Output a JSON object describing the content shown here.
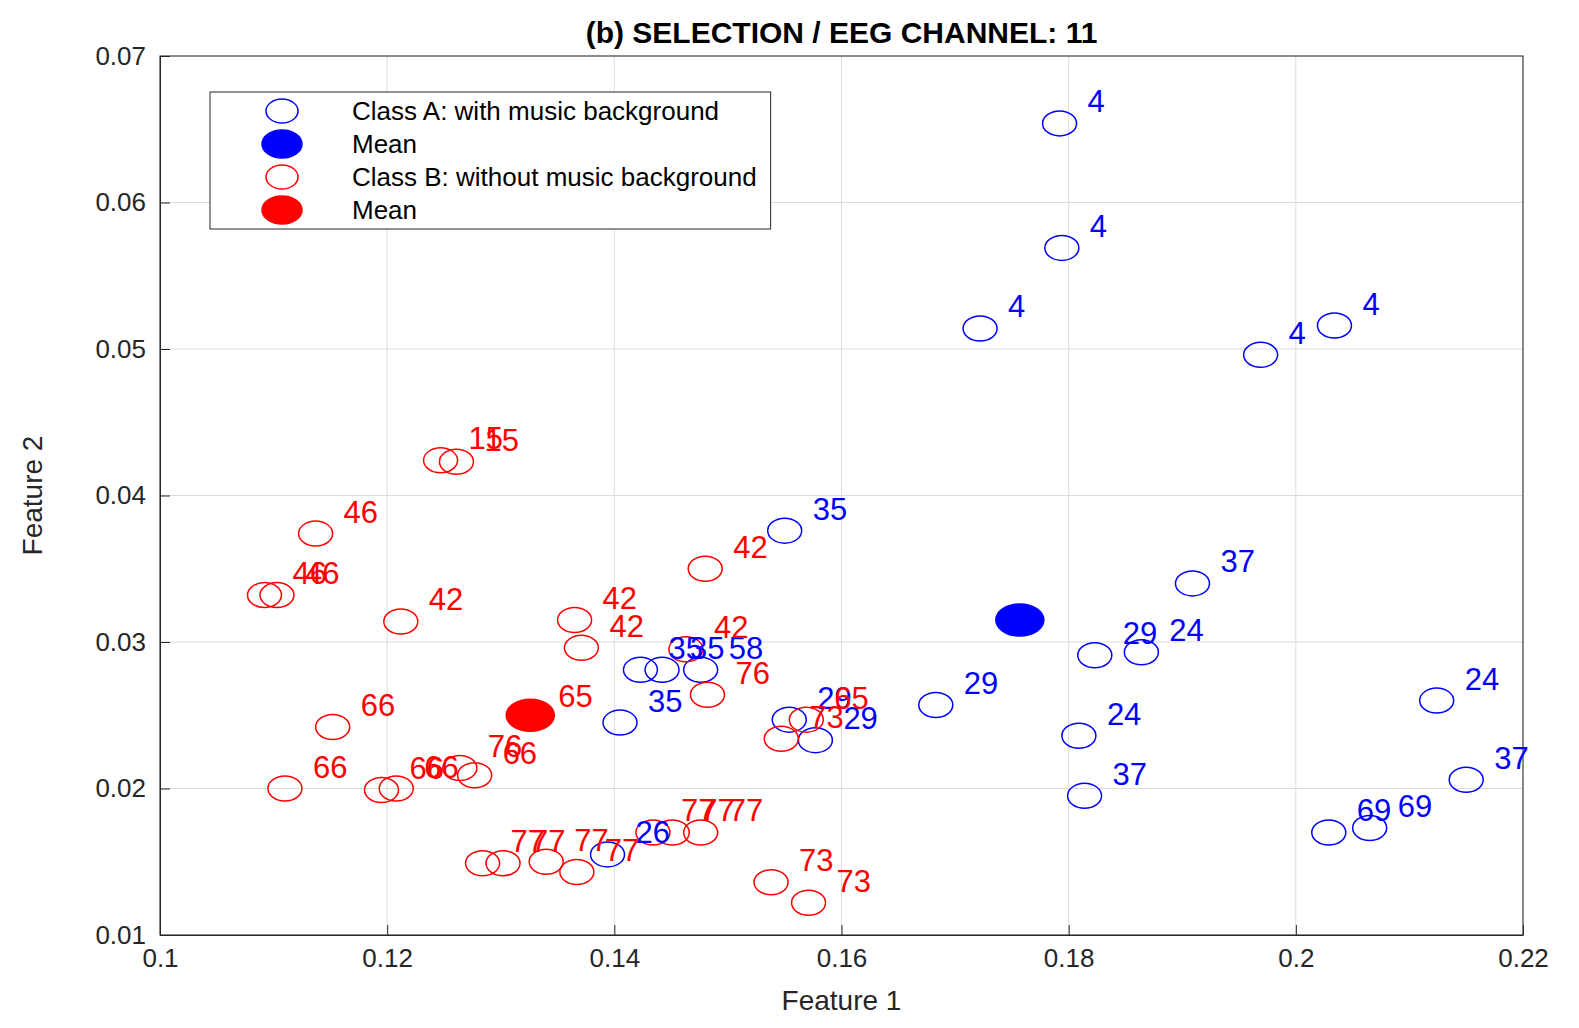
{
  "chart_data": {
    "type": "scatter",
    "title": "(b) SELECTION / EEG CHANNEL: 11",
    "x_label": "Feature 1",
    "y_label": "Feature 2",
    "xlim": [
      0.1,
      0.22
    ],
    "ylim": [
      0.01,
      0.07
    ],
    "xticks": [
      0.1,
      0.12,
      0.14,
      0.16,
      0.18,
      0.2,
      0.22
    ],
    "yticks": [
      0.01,
      0.02,
      0.03,
      0.04,
      0.05,
      0.06,
      0.07
    ],
    "grid": true,
    "legend": "top-left",
    "series": [
      {
        "name": "Class A: with music background",
        "color": "#0000ff",
        "marker": "circle-open",
        "x": [
          0.1792,
          0.1794,
          0.1722,
          0.1969,
          0.2034,
          0.155,
          0.1909,
          0.1823,
          0.1864,
          0.1683,
          0.1809,
          0.1814,
          0.2124,
          0.215,
          0.2029,
          0.2065,
          0.1423,
          0.1442,
          0.1476,
          0.1405,
          0.1554,
          0.1577,
          0.1394
        ],
        "values": [
          0.0654,
          0.0569,
          0.0514,
          0.0496,
          0.0516,
          0.0376,
          0.034,
          0.0291,
          0.0293,
          0.0257,
          0.0236,
          0.0195,
          0.026,
          0.0206,
          0.017,
          0.0173,
          0.0281,
          0.0281,
          0.0281,
          0.0245,
          0.0247,
          0.0233,
          0.0155
        ],
        "labels": [
          "4",
          "4",
          "4",
          "4",
          "4",
          "35",
          "37",
          "29",
          "24",
          "29",
          "24",
          "37",
          "24",
          "37",
          "69",
          "69",
          "35",
          "35",
          "58",
          "35",
          "29",
          "29",
          "26"
        ]
      },
      {
        "name": "Mean",
        "color": "#0000ff",
        "marker": "circle",
        "x": [
          0.1757
        ],
        "values": [
          0.0315
        ]
      },
      {
        "name": "Class B: without music background",
        "color": "#ff0000",
        "marker": "circle-open",
        "x": [
          0.1247,
          0.1261,
          0.1137,
          0.1092,
          0.1103,
          0.1212,
          0.1365,
          0.1371,
          0.148,
          0.1463,
          0.1482,
          0.1152,
          0.111,
          0.1195,
          0.1208,
          0.1277,
          0.1264,
          0.1569,
          0.1547,
          0.1326,
          0.1284,
          0.1302,
          0.134,
          0.1367,
          0.1434,
          0.1451,
          0.1476,
          0.1538,
          0.1571
        ],
        "values": [
          0.0424,
          0.0423,
          0.0374,
          0.0332,
          0.0332,
          0.0314,
          0.0315,
          0.0296,
          0.035,
          0.0295,
          0.0264,
          0.0242,
          0.02,
          0.0199,
          0.02,
          0.0209,
          0.0214,
          0.0247,
          0.0234,
          0.0248,
          0.0149,
          0.0149,
          0.015,
          0.0143,
          0.017,
          0.017,
          0.017,
          0.0136,
          0.0122
        ],
        "labels": [
          "15",
          "15",
          "46",
          "46",
          "46",
          "42",
          "42",
          "42",
          "42",
          "42",
          "76",
          "66",
          "66",
          "66",
          "66",
          "66",
          "76",
          "65",
          "73",
          "65",
          "77",
          "77",
          "77",
          "77",
          "77",
          "77",
          "77",
          "73",
          "73"
        ]
      },
      {
        "name": "Mean",
        "color": "#ff0000",
        "marker": "circle",
        "x": [
          0.1326
        ],
        "values": [
          0.025
        ]
      }
    ]
  }
}
